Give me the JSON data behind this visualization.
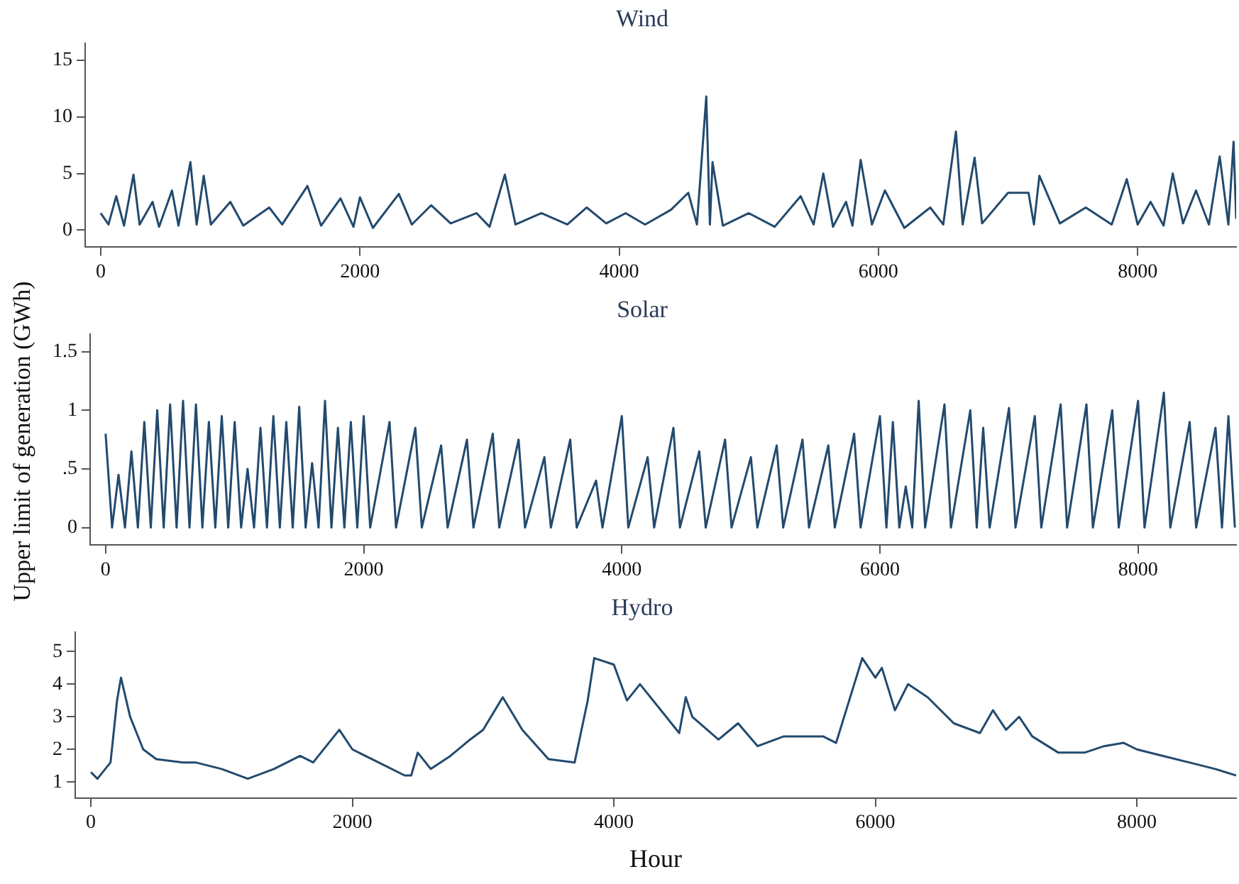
{
  "chart_data": [
    {
      "type": "line",
      "title": "Wind",
      "x": [
        0,
        60,
        120,
        180,
        253,
        300,
        400,
        450,
        550,
        600,
        692,
        740,
        795,
        850,
        1000,
        1100,
        1300,
        1400,
        1595,
        1700,
        1850,
        1950,
        2000,
        2100,
        2300,
        2400,
        2550,
        2700,
        2900,
        3000,
        3118,
        3200,
        3400,
        3600,
        3750,
        3900,
        4050,
        4200,
        4400,
        4533,
        4600,
        4672,
        4700,
        4720,
        4800,
        5000,
        5200,
        5400,
        5500,
        5575,
        5650,
        5750,
        5800,
        5863,
        5950,
        6050,
        6200,
        6400,
        6500,
        6598,
        6650,
        6742,
        6800,
        7000,
        7158,
        7200,
        7242,
        7400,
        7600,
        7800,
        7916,
        8000,
        8100,
        8200,
        8271,
        8350,
        8450,
        8550,
        8633,
        8700,
        8740,
        8760
      ],
      "series": [
        {
          "color": "#234a6e",
          "values": [
            1.5,
            0.5,
            3,
            0.4,
            4.9,
            0.5,
            2.5,
            0.3,
            3.5,
            0.4,
            6,
            0.5,
            4.8,
            0.5,
            2.5,
            0.4,
            2,
            0.5,
            3.9,
            0.4,
            2.8,
            0.3,
            2.9,
            0.2,
            3.2,
            0.5,
            2.2,
            0.6,
            1.5,
            0.3,
            4.9,
            0.5,
            1.5,
            0.5,
            2,
            0.6,
            1.5,
            0.5,
            1.8,
            3.3,
            0.5,
            11.8,
            0.5,
            6,
            0.4,
            1.5,
            0.3,
            3,
            0.5,
            5,
            0.3,
            2.5,
            0.4,
            6.2,
            0.5,
            3.5,
            0.2,
            2,
            0.5,
            8.7,
            0.5,
            6.4,
            0.6,
            3.3,
            3.3,
            0.5,
            4.8,
            0.6,
            2,
            0.5,
            4.5,
            0.5,
            2.5,
            0.4,
            5,
            0.6,
            3.5,
            0.5,
            6.5,
            0.5,
            7.8,
            1
          ]
        }
      ],
      "xlim": [
        -120,
        8760
      ],
      "xticks": [
        0,
        2000,
        4000,
        6000,
        8000
      ],
      "ylim": [
        -1.5,
        16.5
      ],
      "yticks": [
        0,
        5,
        10,
        15
      ],
      "marker": "none"
    },
    {
      "type": "line",
      "title": "Solar",
      "ylabel": "Upper limit of generation (GWh)",
      "x": [
        0,
        50,
        100,
        150,
        200,
        250,
        300,
        350,
        400,
        450,
        500,
        550,
        600,
        650,
        700,
        750,
        800,
        850,
        900,
        950,
        1000,
        1050,
        1100,
        1150,
        1200,
        1250,
        1300,
        1350,
        1400,
        1450,
        1500,
        1550,
        1600,
        1650,
        1700,
        1750,
        1800,
        1850,
        1900,
        1950,
        2000,
        2050,
        2200,
        2250,
        2400,
        2450,
        2600,
        2650,
        2800,
        2850,
        3000,
        3050,
        3200,
        3250,
        3400,
        3450,
        3600,
        3650,
        3800,
        3850,
        4000,
        4050,
        4200,
        4250,
        4400,
        4450,
        4600,
        4650,
        4800,
        4850,
        5000,
        5050,
        5200,
        5250,
        5400,
        5450,
        5600,
        5650,
        5800,
        5850,
        6000,
        6050,
        6100,
        6150,
        6200,
        6250,
        6300,
        6350,
        6500,
        6550,
        6700,
        6750,
        6800,
        6850,
        7000,
        7050,
        7200,
        7250,
        7400,
        7450,
        7600,
        7650,
        7800,
        7850,
        8000,
        8050,
        8200,
        8250,
        8400,
        8450,
        8600,
        8650,
        8700,
        8750
      ],
      "series": [
        {
          "color": "#234a6e",
          "values": [
            0.8,
            0,
            0.45,
            0,
            0.65,
            0,
            0.9,
            0,
            1,
            0,
            1.05,
            0,
            1.08,
            0,
            1.05,
            0,
            0.9,
            0,
            0.95,
            0,
            0.9,
            0,
            0.5,
            0,
            0.85,
            0,
            0.95,
            0,
            0.9,
            0,
            1.03,
            0,
            0.55,
            0,
            1.08,
            0,
            0.85,
            0,
            0.9,
            0,
            0.95,
            0,
            0.9,
            0,
            0.85,
            0,
            0.7,
            0,
            0.75,
            0,
            0.8,
            0,
            0.75,
            0,
            0.6,
            0,
            0.75,
            0,
            0.4,
            0,
            0.95,
            0,
            0.6,
            0,
            0.85,
            0,
            0.65,
            0,
            0.75,
            0,
            0.6,
            0,
            0.7,
            0,
            0.75,
            0,
            0.7,
            0,
            0.8,
            0,
            0.95,
            0,
            0.9,
            0,
            0.35,
            0,
            1.08,
            0,
            1.05,
            0,
            1,
            0,
            0.85,
            0,
            1.02,
            0,
            0.95,
            0,
            1.05,
            0,
            1.05,
            0,
            1,
            0,
            1.08,
            0,
            1.15,
            0,
            0.9,
            0,
            0.85,
            0,
            0.95,
            0
          ]
        }
      ],
      "xlim": [
        -120,
        8760
      ],
      "xticks": [
        0,
        2000,
        4000,
        6000,
        8000
      ],
      "ylim": [
        -0.15,
        1.65
      ],
      "yticks": [
        0,
        {
          "value": 0.5,
          "label": ".5"
        },
        1,
        1.5
      ],
      "marker": "none"
    },
    {
      "type": "line",
      "title": "Hydro",
      "xlabel": "Hour",
      "x": [
        0,
        50,
        150,
        200,
        230,
        300,
        400,
        500,
        700,
        800,
        1000,
        1200,
        1400,
        1600,
        1700,
        1900,
        2000,
        2200,
        2400,
        2450,
        2500,
        2600,
        2750,
        2900,
        3000,
        3150,
        3300,
        3500,
        3700,
        3800,
        3850,
        4000,
        4100,
        4200,
        4400,
        4500,
        4550,
        4600,
        4800,
        4950,
        5100,
        5300,
        5600,
        5700,
        5800,
        5900,
        6000,
        6050,
        6150,
        6250,
        6400,
        6600,
        6800,
        6900,
        7000,
        7100,
        7200,
        7400,
        7600,
        7750,
        7900,
        8000,
        8200,
        8400,
        8600,
        8760
      ],
      "series": [
        {
          "color": "#234a6e",
          "values": [
            1.3,
            1.1,
            1.6,
            3.5,
            4.2,
            3,
            2,
            1.7,
            1.6,
            1.6,
            1.4,
            1.1,
            1.4,
            1.8,
            1.6,
            2.6,
            2,
            1.6,
            1.2,
            1.2,
            1.9,
            1.4,
            1.8,
            2.3,
            2.6,
            3.6,
            2.6,
            1.7,
            1.6,
            3.5,
            4.8,
            4.6,
            3.5,
            4,
            3,
            2.5,
            3.6,
            3,
            2.3,
            2.8,
            2.1,
            2.4,
            2.4,
            2.2,
            3.5,
            4.8,
            4.2,
            4.5,
            3.2,
            4,
            3.6,
            2.8,
            2.5,
            3.2,
            2.6,
            3,
            2.4,
            1.9,
            1.9,
            2.1,
            2.2,
            2,
            1.8,
            1.6,
            1.4,
            1.2
          ]
        }
      ],
      "xlim": [
        -120,
        8760
      ],
      "xticks": [
        0,
        2000,
        4000,
        6000,
        8000
      ],
      "ylim": [
        0.5,
        5.6
      ],
      "yticks": [
        1,
        2,
        3,
        4,
        5
      ],
      "marker": "none"
    }
  ]
}
